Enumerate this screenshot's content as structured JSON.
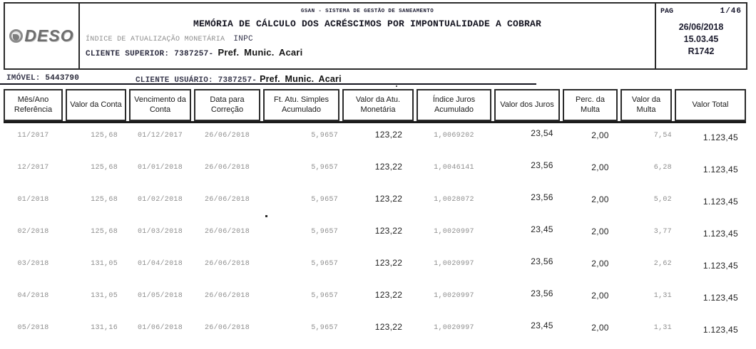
{
  "header": {
    "logo_text": "DESO",
    "system_title": "GSAN - SISTEMA DE GESTÃO DE SANEAMENTO",
    "report_title": "MEMÓRIA DE CÁLCULO DOS ACRÉSCIMOS POR IMPONTUALIDADE A COBRAR",
    "index_label": "ÍNDICE DE ATUALIZAÇÃO MONETÁRIA",
    "index_value": "INPC",
    "cliente_superior_label": "CLIENTE SUPERIOR:",
    "cliente_superior_code": "7387257-",
    "cliente_superior_name": "Pref. Munic. Acari",
    "pag_label": "PAG",
    "pag_value": "1/46",
    "date": "26/06/2018",
    "time": "15.03.45",
    "report_code": "R1742"
  },
  "subheader": {
    "imovel_label": "IMÓVEL:",
    "imovel_value": "5443790",
    "cliente_usuario_label": "CLIENTE USUÁRIO:",
    "cliente_usuario_code": "7387257-",
    "cliente_usuario_name": "Pref. Munic. Acari"
  },
  "table": {
    "columns": [
      "Mês/Ano Referência",
      "Valor da Conta",
      "Vencimento da Conta",
      "Data para Correção",
      "Ft. Atu. Simples Acumulado",
      "Valor da Atu. Monetária",
      "Índice Juros Acumulado",
      "Valor dos Juros",
      "Perc. da Multa",
      "Valor da Multa",
      "Valor Total"
    ],
    "rows": [
      [
        "11/2017",
        "125,68",
        "01/12/2017",
        "26/06/2018",
        "5,9657",
        "123,22",
        "1,0069202",
        "23,54",
        "2,00",
        "7,54",
        "1.123,45"
      ],
      [
        "12/2017",
        "125,68",
        "01/01/2018",
        "26/06/2018",
        "5,9657",
        "123,22",
        "1,0046141",
        "23,56",
        "2,00",
        "6,28",
        "1.123,45"
      ],
      [
        "01/2018",
        "125,68",
        "01/02/2018",
        "26/06/2018",
        "5,9657",
        "123,22",
        "1,0028072",
        "23,56",
        "2,00",
        "5,02",
        "1.123,45"
      ],
      [
        "02/2018",
        "125,68",
        "01/03/2018",
        "26/06/2018",
        "5,9657",
        "123,22",
        "1,0020997",
        "23,45",
        "2,00",
        "3,77",
        "1.123,45"
      ],
      [
        "03/2018",
        "131,05",
        "01/04/2018",
        "26/06/2018",
        "5,9657",
        "123,22",
        "1,0020997",
        "23,56",
        "2,00",
        "2,62",
        "1.123,45"
      ],
      [
        "04/2018",
        "131,05",
        "01/05/2018",
        "26/06/2018",
        "5,9657",
        "123,22",
        "1,0020997",
        "23,56",
        "2,00",
        "1,31",
        "1.123,45"
      ],
      [
        "05/2018",
        "131,16",
        "01/06/2018",
        "26/06/2018",
        "5,9657",
        "123,22",
        "1,0020997",
        "23,45",
        "2,00",
        "1,31",
        "1.123,45"
      ]
    ],
    "dark_columns": [
      5,
      7,
      8,
      10
    ]
  },
  "colors": {
    "border": "#2b2b2b",
    "gray_text": "#8f8f8f",
    "dark_text": "#1f1f1f",
    "logo_gray": "#6e6e6e"
  }
}
